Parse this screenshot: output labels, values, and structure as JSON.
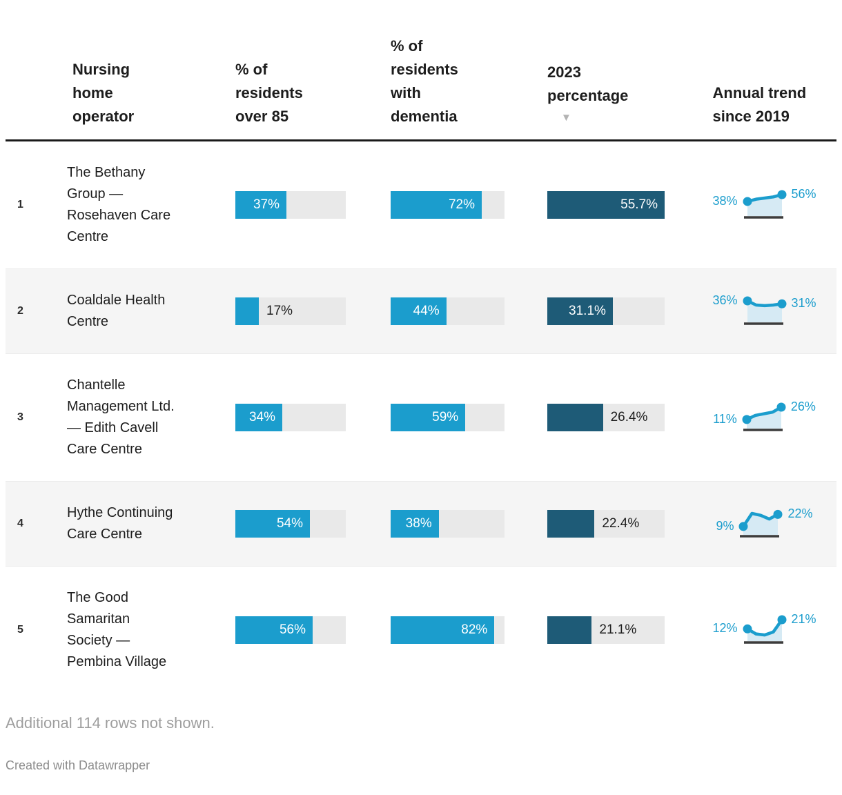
{
  "colors": {
    "accent_blue": "#1b9dcd",
    "bar_dark_teal": "#1e5b77",
    "bar_track": "#e9e9e9",
    "row_stripe": "#f5f5f5",
    "trend_area": "#d6eaf4",
    "trend_baseline": "#3c3c3c",
    "header_rule": "#1a1a1a",
    "muted_text": "#9e9e9e"
  },
  "header": {
    "sort_arrow": "▼",
    "columns": [
      {
        "label": "Nursing home operator"
      },
      {
        "label": "% of residents over 85"
      },
      {
        "label": "% of residents with dementia"
      },
      {
        "label": "2023 percentage"
      },
      {
        "label": "Annual trend since 2019"
      }
    ]
  },
  "table": {
    "rows": [
      {
        "rank": "1",
        "operator": "The Bethany Group — Rosehaven Care Centre",
        "over85": {
          "label": "37%",
          "value": 37,
          "label_inside": true
        },
        "dementia": {
          "label": "72%",
          "value": 72,
          "label_inside": true
        },
        "pct2023": {
          "label": "55.7%",
          "value": 55.7,
          "label_inside": true
        },
        "trend": {
          "start_label": "38%",
          "end_label": "56%",
          "points": [
            38,
            44,
            47,
            50,
            56
          ]
        }
      },
      {
        "rank": "2",
        "operator": "Coaldale Health Centre",
        "over85": {
          "label": "17%",
          "value": 17,
          "label_inside": false
        },
        "dementia": {
          "label": "44%",
          "value": 44,
          "label_inside": true
        },
        "pct2023": {
          "label": "31.1%",
          "value": 31.1,
          "label_inside": true
        },
        "trend": {
          "start_label": "36%",
          "end_label": "31%",
          "points": [
            36,
            29,
            28,
            29,
            31
          ]
        }
      },
      {
        "rank": "3",
        "operator": "Chantelle Management Ltd. — Edith Cavell Care Centre",
        "over85": {
          "label": "34%",
          "value": 34,
          "label_inside": true
        },
        "dementia": {
          "label": "59%",
          "value": 59,
          "label_inside": true
        },
        "pct2023": {
          "label": "26.4%",
          "value": 26.4,
          "label_inside": false
        },
        "trend": {
          "start_label": "11%",
          "end_label": "26%",
          "points": [
            11,
            16,
            18,
            20,
            26
          ]
        }
      },
      {
        "rank": "4",
        "operator": "Hythe Continuing Care Centre",
        "over85": {
          "label": "54%",
          "value": 54,
          "label_inside": true
        },
        "dementia": {
          "label": "38%",
          "value": 38,
          "label_inside": true
        },
        "pct2023": {
          "label": "22.4%",
          "value": 22.4,
          "label_inside": false
        },
        "trend": {
          "start_label": "9%",
          "end_label": "22%",
          "points": [
            9,
            23,
            21,
            17,
            22
          ]
        }
      },
      {
        "rank": "5",
        "operator": "The Good Samaritan Society — Pembina Village",
        "over85": {
          "label": "56%",
          "value": 56,
          "label_inside": true
        },
        "dementia": {
          "label": "82%",
          "value": 82,
          "label_inside": true
        },
        "pct2023": {
          "label": "21.1%",
          "value": 21.1,
          "label_inside": false
        },
        "trend": {
          "start_label": "12%",
          "end_label": "21%",
          "points": [
            12,
            7,
            6,
            9,
            21
          ]
        }
      }
    ]
  },
  "footer": {
    "note": "Additional 114 rows not shown.",
    "credit": "Created with Datawrapper"
  },
  "chart_data": {
    "type": "table",
    "columns": [
      "Nursing home operator",
      "% of residents over 85",
      "% of residents with dementia",
      "2023 percentage",
      "Annual trend since 2019"
    ],
    "sorted_by": "2023 percentage",
    "sort_direction": "descending",
    "bar_scale_max": {
      "over85": 80,
      "dementia": 90,
      "pct2023": 55.7
    },
    "rows": [
      {
        "rank": 1,
        "operator": "The Bethany Group — Rosehaven Care Centre",
        "pct_over_85": 37,
        "pct_dementia": 72,
        "pct_2023": 55.7,
        "trend_start_2019": 38,
        "trend_end_2023": 56,
        "trend_points_est": [
          38,
          44,
          47,
          50,
          56
        ]
      },
      {
        "rank": 2,
        "operator": "Coaldale Health Centre",
        "pct_over_85": 17,
        "pct_dementia": 44,
        "pct_2023": 31.1,
        "trend_start_2019": 36,
        "trend_end_2023": 31,
        "trend_points_est": [
          36,
          29,
          28,
          29,
          31
        ]
      },
      {
        "rank": 3,
        "operator": "Chantelle Management Ltd. — Edith Cavell Care Centre",
        "pct_over_85": 34,
        "pct_dementia": 59,
        "pct_2023": 26.4,
        "trend_start_2019": 11,
        "trend_end_2023": 26,
        "trend_points_est": [
          11,
          16,
          18,
          20,
          26
        ]
      },
      {
        "rank": 4,
        "operator": "Hythe Continuing Care Centre",
        "pct_over_85": 54,
        "pct_dementia": 38,
        "pct_2023": 22.4,
        "trend_start_2019": 9,
        "trend_end_2023": 22,
        "trend_points_est": [
          9,
          23,
          21,
          17,
          22
        ]
      },
      {
        "rank": 5,
        "operator": "The Good Samaritan Society — Pembina Village",
        "pct_over_85": 56,
        "pct_dementia": 82,
        "pct_2023": 21.1,
        "trend_start_2019": 12,
        "trend_end_2023": 21,
        "trend_points_est": [
          12,
          7,
          6,
          9,
          21
        ]
      }
    ],
    "note": "Additional 114 rows not shown."
  }
}
